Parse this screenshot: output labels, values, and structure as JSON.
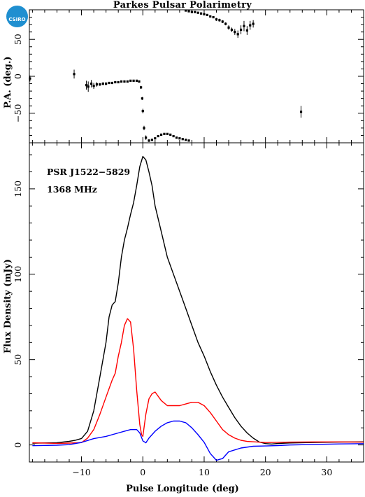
{
  "title": "Parkes Pulsar Polarimetry",
  "logo_text": "CSIRO",
  "pulsar_label": "PSR J1522−5829",
  "freq_label": "1368 MHz",
  "colors": {
    "total": "#000000",
    "linear": "#ff0000",
    "circular": "#0000ff",
    "logo": "#1f8fd0"
  },
  "chart_data": [
    {
      "type": "scatter",
      "ylabel": "P.A. (deg.)",
      "xlim": [
        -18.5,
        36
      ],
      "ylim": [
        -90,
        90
      ],
      "x_ticks": [
        -10,
        0,
        10,
        20,
        30
      ],
      "y_ticks": [
        -50,
        0,
        50
      ],
      "points": [
        {
          "x": -18.4,
          "y": -3,
          "err": 4
        },
        {
          "x": -11.2,
          "y": 3,
          "err": 6
        },
        {
          "x": -9.2,
          "y": -12,
          "err": 6
        },
        {
          "x": -8.9,
          "y": -14,
          "err": 7
        },
        {
          "x": -8.4,
          "y": -10,
          "err": 5
        },
        {
          "x": -8.0,
          "y": -13,
          "err": 4
        },
        {
          "x": -7.5,
          "y": -11,
          "err": 3
        },
        {
          "x": -7.0,
          "y": -11,
          "err": 2
        },
        {
          "x": -6.5,
          "y": -10,
          "err": 2
        },
        {
          "x": -6.0,
          "y": -10,
          "err": 2
        },
        {
          "x": -5.5,
          "y": -9,
          "err": 1.5
        },
        {
          "x": -5.0,
          "y": -9,
          "err": 1.5
        },
        {
          "x": -4.5,
          "y": -8,
          "err": 1
        },
        {
          "x": -4.0,
          "y": -8,
          "err": 1
        },
        {
          "x": -3.5,
          "y": -7,
          "err": 1
        },
        {
          "x": -3.0,
          "y": -7,
          "err": 1
        },
        {
          "x": -2.5,
          "y": -7,
          "err": 1
        },
        {
          "x": -2.0,
          "y": -6,
          "err": 1
        },
        {
          "x": -1.5,
          "y": -6,
          "err": 1
        },
        {
          "x": -1.0,
          "y": -6,
          "err": 1
        },
        {
          "x": -0.6,
          "y": -7,
          "err": 1
        },
        {
          "x": -0.3,
          "y": -15,
          "err": 2
        },
        {
          "x": -0.1,
          "y": -30,
          "err": 2
        },
        {
          "x": 0.0,
          "y": -47,
          "err": 3
        },
        {
          "x": 0.2,
          "y": -70,
          "err": 3
        },
        {
          "x": 0.5,
          "y": -83,
          "err": 3
        },
        {
          "x": 1.0,
          "y": -87,
          "err": 2
        },
        {
          "x": 1.5,
          "y": -86,
          "err": 1
        },
        {
          "x": 2.0,
          "y": -84,
          "err": 1
        },
        {
          "x": 2.5,
          "y": -81,
          "err": 1
        },
        {
          "x": 3.0,
          "y": -79,
          "err": 1
        },
        {
          "x": 3.5,
          "y": -78,
          "err": 1
        },
        {
          "x": 4.0,
          "y": -78,
          "err": 1
        },
        {
          "x": 4.5,
          "y": -79,
          "err": 1
        },
        {
          "x": 5.0,
          "y": -81,
          "err": 1
        },
        {
          "x": 5.5,
          "y": -83,
          "err": 1
        },
        {
          "x": 6.0,
          "y": -84,
          "err": 1
        },
        {
          "x": 6.5,
          "y": -85,
          "err": 1
        },
        {
          "x": 7.0,
          "y": -86,
          "err": 1
        },
        {
          "x": 7.5,
          "y": -87,
          "err": 1
        },
        {
          "x": 7.0,
          "y": 89,
          "err": 1
        },
        {
          "x": 7.5,
          "y": 88,
          "err": 1
        },
        {
          "x": 8.0,
          "y": 87,
          "err": 1
        },
        {
          "x": 8.5,
          "y": 87,
          "err": 1
        },
        {
          "x": 9.0,
          "y": 86,
          "err": 1
        },
        {
          "x": 9.5,
          "y": 85,
          "err": 1
        },
        {
          "x": 10.0,
          "y": 84,
          "err": 1
        },
        {
          "x": 10.5,
          "y": 83,
          "err": 1
        },
        {
          "x": 11.0,
          "y": 81,
          "err": 1
        },
        {
          "x": 11.5,
          "y": 80,
          "err": 1
        },
        {
          "x": 12.0,
          "y": 77,
          "err": 2
        },
        {
          "x": 12.5,
          "y": 76,
          "err": 2
        },
        {
          "x": 13.0,
          "y": 74,
          "err": 2
        },
        {
          "x": 13.5,
          "y": 71,
          "err": 2
        },
        {
          "x": 14.0,
          "y": 66,
          "err": 3
        },
        {
          "x": 14.5,
          "y": 63,
          "err": 3
        },
        {
          "x": 15.0,
          "y": 60,
          "err": 4
        },
        {
          "x": 15.5,
          "y": 57,
          "err": 5
        },
        {
          "x": 16.0,
          "y": 63,
          "err": 6
        },
        {
          "x": 16.5,
          "y": 68,
          "err": 7
        },
        {
          "x": 17.0,
          "y": 62,
          "err": 6
        },
        {
          "x": 17.5,
          "y": 69,
          "err": 6
        },
        {
          "x": 18.0,
          "y": 71,
          "err": 5
        },
        {
          "x": 25.8,
          "y": -48,
          "err": 8
        }
      ]
    },
    {
      "type": "line",
      "xlabel": "Pulse Longitude (deg)",
      "ylabel": "Flux Density (mJy)",
      "xlim": [
        -18.5,
        36
      ],
      "ylim": [
        -10,
        177
      ],
      "x_ticks": [
        -10,
        0,
        10,
        20,
        30
      ],
      "y_ticks": [
        0,
        50,
        100,
        150
      ],
      "series": [
        {
          "color": "#000000",
          "x": [
            -18,
            -14,
            -12,
            -11,
            -10,
            -9,
            -8,
            -7,
            -6,
            -5.5,
            -5,
            -4.5,
            -4,
            -3.5,
            -3,
            -2.5,
            -2,
            -1.5,
            -1,
            -0.5,
            0,
            0.5,
            1,
            1.5,
            2,
            3,
            4,
            5,
            6,
            7,
            8,
            9,
            10,
            11,
            12,
            13,
            14,
            15,
            16,
            17,
            18,
            19,
            20,
            21,
            22,
            24,
            28,
            32,
            36
          ],
          "y": [
            1,
            1,
            1.5,
            2,
            3,
            8,
            20,
            40,
            60,
            75,
            82,
            84,
            95,
            110,
            120,
            127,
            135,
            142,
            152,
            163,
            169,
            167,
            160,
            152,
            140,
            125,
            110,
            100,
            90,
            80,
            70,
            60,
            52,
            43,
            35,
            28,
            22,
            16,
            11,
            7,
            4,
            2.5,
            1.5,
            1,
            1,
            1,
            1,
            1,
            1
          ]
        },
        {
          "color": "#ff0000",
          "x": [
            -18,
            -14,
            -12,
            -10,
            -9,
            -8,
            -7,
            -6,
            -5,
            -4.5,
            -4,
            -3.5,
            -3,
            -2.5,
            -2,
            -1.5,
            -1,
            -0.5,
            -0.2,
            0,
            0.5,
            1,
            1.5,
            2,
            3,
            4,
            5,
            6,
            7,
            8,
            9,
            10,
            11,
            12,
            13,
            14,
            15,
            16,
            17,
            20,
            24,
            28,
            32,
            36
          ],
          "y": [
            1,
            1,
            1.5,
            2,
            4,
            9,
            18,
            28,
            38,
            42,
            52,
            60,
            70,
            74,
            72,
            56,
            32,
            12,
            6,
            5,
            18,
            27,
            30,
            31,
            26,
            23,
            23,
            23,
            24,
            25,
            25,
            23,
            19,
            14,
            9,
            6,
            4,
            3,
            2,
            1,
            1,
            1,
            1,
            1
          ]
        },
        {
          "color": "#0000ff",
          "x": [
            -18,
            -14,
            -12,
            -10,
            -8,
            -6,
            -4,
            -3,
            -2,
            -1,
            -0.5,
            0,
            0.5,
            1,
            2,
            3,
            4,
            5,
            6,
            7,
            8,
            9,
            10,
            11,
            12,
            13,
            14,
            16,
            18,
            20,
            22,
            24,
            28,
            32,
            36
          ],
          "y": [
            0,
            0,
            0,
            1,
            3,
            5,
            7,
            8,
            9,
            9,
            7,
            3,
            2,
            4,
            8,
            11,
            13,
            14,
            14,
            13,
            10,
            6,
            1,
            -5,
            -9,
            -8,
            -4,
            -1,
            0,
            0,
            0,
            0,
            0,
            0,
            0
          ]
        }
      ]
    }
  ]
}
